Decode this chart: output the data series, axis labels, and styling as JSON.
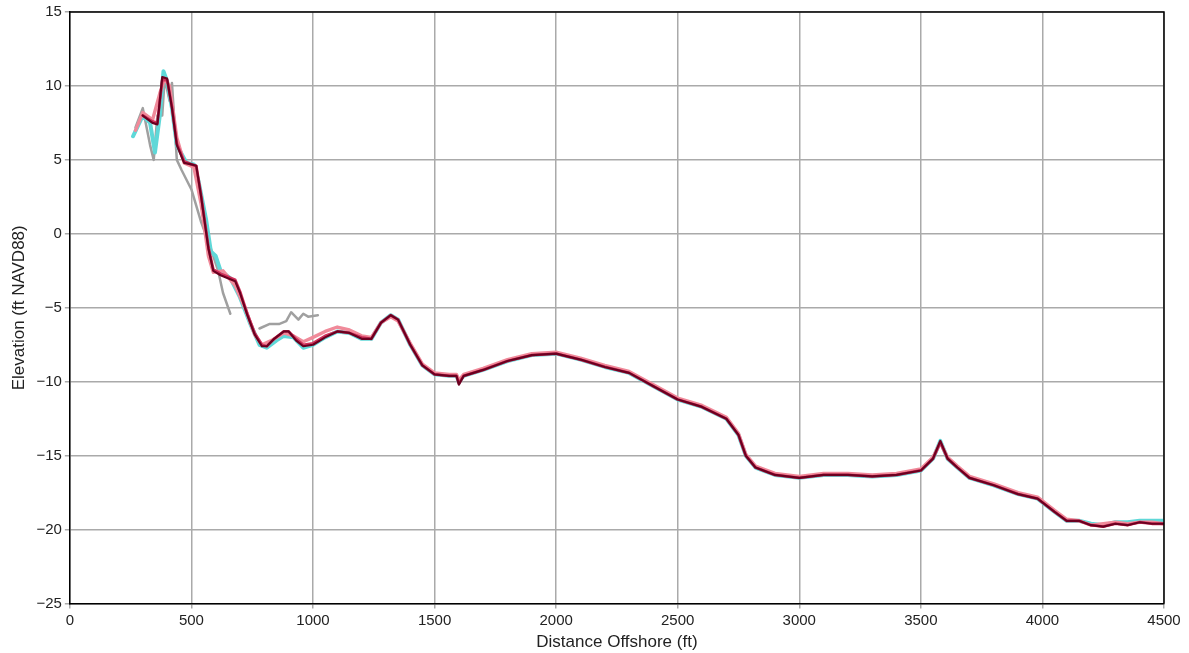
{
  "chart_data": {
    "type": "line",
    "xlabel": "Distance Offshore (ft)",
    "ylabel": "Elevation (ft NAVD88)",
    "xlim": [
      0,
      4500
    ],
    "xticks": [
      0,
      500,
      1000,
      1500,
      2000,
      2500,
      3000,
      3500,
      4000,
      4500
    ],
    "ylim": [
      -25,
      15
    ],
    "yticks": [
      -25,
      -20,
      -15,
      -10,
      -5,
      0,
      5,
      10,
      15
    ],
    "grid": true,
    "series": [
      {
        "color": "#a0a0a0",
        "x": [
          270,
          300,
          330,
          345,
          360,
          380,
          390,
          410,
          420,
          440,
          460,
          500,
          540,
          580,
          610,
          630,
          660,
          700,
          780,
          820,
          860,
          890,
          910,
          940,
          960,
          980,
          1020
        ],
        "values": [
          7.2,
          8.5,
          6.0,
          5.0,
          8.0,
          8.0,
          10.5,
          9.0,
          10.2,
          5.0,
          4.3,
          3.0,
          0.8,
          -1.0,
          -2.5,
          -4.0,
          -5.4,
          null,
          -6.4,
          -6.1,
          -6.1,
          -5.9,
          -5.3,
          -5.8,
          -5.4,
          -5.6,
          -5.5
        ]
      },
      {
        "color": "#5fd8d8",
        "x": [
          260,
          300,
          330,
          350,
          370,
          385,
          400,
          420,
          440,
          480,
          510,
          530,
          560,
          580,
          600,
          620,
          660,
          700,
          740,
          780,
          810,
          850,
          880,
          920,
          960,
          1000,
          1050,
          1100,
          1150,
          1200,
          1240,
          1280,
          1320,
          1350,
          1400,
          1450,
          1500,
          1560,
          1590,
          1600,
          1620,
          1700,
          1800,
          1900,
          2000,
          2100,
          2200,
          2300,
          2400,
          2500,
          2600,
          2700,
          2750,
          2780,
          2820,
          2900,
          3000,
          3100,
          3200,
          3300,
          3400,
          3500,
          3550,
          3580,
          3610,
          3650,
          3700,
          3800,
          3900,
          3980,
          4050,
          4100,
          4150,
          4200,
          4250,
          4300,
          4350,
          4400,
          4450,
          4500
        ],
        "values": [
          6.6,
          8.0,
          7.5,
          5.5,
          8.0,
          11.0,
          10.3,
          8.5,
          6.0,
          4.8,
          4.7,
          3.5,
          1.0,
          -1.2,
          -1.5,
          -2.5,
          -3.0,
          -4.3,
          -6.0,
          -7.5,
          -7.7,
          -7.2,
          -6.9,
          -7.0,
          -7.7,
          -7.5,
          -7.0,
          -6.6,
          -6.7,
          -7.1,
          -7.1,
          -6.0,
          -5.5,
          -5.8,
          -7.5,
          -8.9,
          -9.5,
          -9.6,
          -9.6,
          -10.0,
          -9.6,
          -9.2,
          -8.6,
          -8.2,
          -8.1,
          -8.5,
          -9.0,
          -9.4,
          -10.3,
          -11.2,
          -11.7,
          -12.5,
          -13.6,
          -15.0,
          -15.8,
          -16.3,
          -16.5,
          -16.3,
          -16.3,
          -16.4,
          -16.3,
          -16.0,
          -15.2,
          -14.0,
          -15.2,
          -15.8,
          -16.5,
          -17.0,
          -17.6,
          -17.9,
          -18.8,
          -19.4,
          -19.4,
          -19.6,
          -19.7,
          -19.5,
          -19.5,
          -19.4,
          -19.4,
          -19.4
        ]
      },
      {
        "color": "#f08a9a",
        "x": [
          270,
          300,
          340,
          370,
          390,
          410,
          440,
          470,
          510,
          540,
          570,
          590,
          630,
          680,
          720,
          760,
          790,
          830,
          880,
          920,
          960,
          1000,
          1050,
          1100,
          1150,
          1200,
          1240,
          1280,
          1320,
          1350,
          1400,
          1450,
          1500,
          1560,
          1590,
          1600,
          1620,
          1700,
          1800,
          1900,
          2000,
          2100,
          2200,
          2300,
          2400,
          2500,
          2600,
          2700,
          2750,
          2780,
          2820,
          2900,
          3000,
          3100,
          3200,
          3300,
          3400,
          3500,
          3550,
          3580,
          3610,
          3650,
          3700,
          3800,
          3900,
          3980,
          4050,
          4100,
          4150,
          4200,
          4250,
          4300,
          4350,
          4400,
          4450,
          4500
        ],
        "values": [
          7.0,
          8.2,
          7.7,
          9.5,
          10.5,
          10.0,
          6.5,
          4.8,
          4.5,
          2.0,
          -1.5,
          -2.6,
          -2.5,
          -3.5,
          -5.0,
          -6.8,
          -7.5,
          -7.2,
          -6.7,
          -6.9,
          -7.3,
          -7.0,
          -6.6,
          -6.3,
          -6.5,
          -6.9,
          -7.0,
          -6.0,
          -5.6,
          -5.9,
          -7.4,
          -8.8,
          -9.4,
          -9.5,
          -9.5,
          -9.9,
          -9.5,
          -9.1,
          -8.5,
          -8.1,
          -8.0,
          -8.4,
          -8.9,
          -9.3,
          -10.2,
          -11.1,
          -11.6,
          -12.4,
          -13.5,
          -14.9,
          -15.7,
          -16.2,
          -16.4,
          -16.2,
          -16.2,
          -16.3,
          -16.2,
          -15.9,
          -15.1,
          -14.1,
          -15.1,
          -15.7,
          -16.4,
          -16.9,
          -17.5,
          -17.8,
          -18.7,
          -19.3,
          -19.4,
          -19.7,
          -19.6,
          -19.5,
          -19.6,
          -19.5,
          -19.5,
          -19.6
        ]
      },
      {
        "color": "#d0305a",
        "x": [
          300,
          340,
          360,
          380,
          400,
          420,
          440,
          470,
          500,
          520,
          540,
          570,
          590,
          620,
          650,
          680,
          700,
          730,
          760,
          790,
          810,
          840,
          880,
          900,
          930,
          960,
          1000,
          1050,
          1100,
          1150,
          1200,
          1240,
          1280,
          1320,
          1350,
          1400,
          1450,
          1500,
          1560,
          1590,
          1600,
          1620,
          1700,
          1800,
          1900,
          2000,
          2100,
          2200,
          2300,
          2400,
          2500,
          2600,
          2700,
          2750,
          2780,
          2820,
          2900,
          3000,
          3100,
          3200,
          3300,
          3400,
          3500,
          3550,
          3580,
          3610,
          3650,
          3700,
          3800,
          3900,
          3980,
          4050,
          4100,
          4150,
          4200,
          4250,
          4300,
          4350,
          4400,
          4450,
          4500
        ],
        "values": [
          8.0,
          7.6,
          7.5,
          10.4,
          10.4,
          8.6,
          6.1,
          4.9,
          4.7,
          4.6,
          2.6,
          -0.9,
          -2.4,
          -2.7,
          -2.9,
          -3.1,
          -3.9,
          -5.4,
          -6.7,
          -7.5,
          -7.6,
          -7.1,
          -6.6,
          -6.6,
          -7.1,
          -7.5,
          -7.4,
          -6.9,
          -6.6,
          -6.7,
          -7.0,
          -7.1,
          -6.0,
          -5.5,
          -5.8,
          -7.5,
          -8.9,
          -9.5,
          -9.6,
          -9.6,
          -10.1,
          -9.6,
          -9.2,
          -8.6,
          -8.2,
          -8.1,
          -8.5,
          -9.0,
          -9.4,
          -10.3,
          -11.2,
          -11.7,
          -12.5,
          -13.6,
          -15.0,
          -15.8,
          -16.3,
          -16.5,
          -16.3,
          -16.3,
          -16.4,
          -16.3,
          -16.0,
          -15.2,
          -14.1,
          -15.2,
          -15.8,
          -16.5,
          -17.0,
          -17.6,
          -17.9,
          -18.8,
          -19.4,
          -19.4,
          -19.7,
          -19.8,
          -19.6,
          -19.7,
          -19.5,
          -19.6,
          -19.6
        ]
      },
      {
        "color": "#6b0020",
        "x": [
          300,
          340,
          360,
          380,
          400,
          420,
          440,
          470,
          500,
          520,
          540,
          570,
          590,
          620,
          650,
          680,
          700,
          730,
          760,
          790,
          810,
          840,
          880,
          900,
          930,
          960,
          1000,
          1050,
          1100,
          1150,
          1200,
          1240,
          1280,
          1320,
          1350,
          1400,
          1450,
          1500,
          1560,
          1590,
          1600,
          1620,
          1700,
          1800,
          1900,
          2000,
          2100,
          2200,
          2300,
          2400,
          2500,
          2600,
          2700,
          2750,
          2780,
          2820,
          2900,
          3000,
          3100,
          3200,
          3300,
          3400,
          3500,
          3550,
          3580,
          3610,
          3650,
          3700,
          3800,
          3900,
          3980,
          4050,
          4100,
          4150,
          4200,
          4250,
          4300,
          4350,
          4400,
          4450,
          4500
        ],
        "values": [
          8.0,
          7.5,
          7.4,
          10.6,
          10.5,
          8.5,
          6.0,
          4.8,
          4.7,
          4.6,
          2.5,
          -1.0,
          -2.5,
          -2.8,
          -3.0,
          -3.2,
          -4.0,
          -5.5,
          -6.8,
          -7.6,
          -7.6,
          -7.1,
          -6.6,
          -6.6,
          -7.2,
          -7.6,
          -7.5,
          -7.0,
          -6.6,
          -6.7,
          -7.1,
          -7.1,
          -6.0,
          -5.5,
          -5.8,
          -7.5,
          -8.9,
          -9.5,
          -9.6,
          -9.6,
          -10.2,
          -9.6,
          -9.2,
          -8.6,
          -8.2,
          -8.1,
          -8.5,
          -9.0,
          -9.4,
          -10.3,
          -11.2,
          -11.7,
          -12.5,
          -13.6,
          -15.0,
          -15.8,
          -16.3,
          -16.5,
          -16.3,
          -16.3,
          -16.4,
          -16.3,
          -16.0,
          -15.2,
          -14.0,
          -15.2,
          -15.8,
          -16.5,
          -17.0,
          -17.6,
          -17.9,
          -18.8,
          -19.4,
          -19.4,
          -19.7,
          -19.8,
          -19.6,
          -19.7,
          -19.5,
          -19.6,
          -19.6
        ]
      }
    ]
  }
}
